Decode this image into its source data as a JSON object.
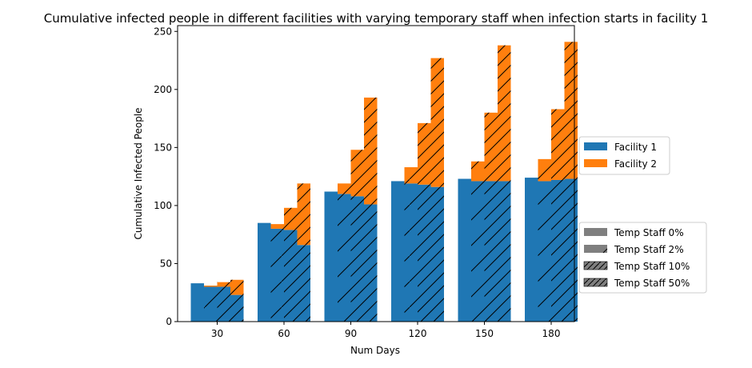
{
  "chart_data": {
    "type": "bar",
    "title": "Cumulative infected people in different facilities with varying temporary staff when infection starts in facility 1",
    "xlabel": "Num Days",
    "ylabel": "Cumulative Infected People",
    "categories": [
      "30",
      "60",
      "90",
      "120",
      "150",
      "180"
    ],
    "ylim": [
      0,
      255
    ],
    "yticks": [
      0,
      50,
      100,
      150,
      200,
      250
    ],
    "stacking": "stacked by facility within each temp staff group",
    "groups": [
      "Temp Staff 0%",
      "Temp Staff 2%",
      "Temp Staff 10%",
      "Temp Staff 50%"
    ],
    "group_hatch": [
      "none",
      "sparse",
      "dense",
      "dense"
    ],
    "series": [
      {
        "name": "Facility 1",
        "color": "#1f77b4",
        "values": [
          [
            33,
            30,
            30,
            23
          ],
          [
            85,
            80,
            79,
            66
          ],
          [
            112,
            110,
            108,
            101
          ],
          [
            121,
            119,
            118,
            116
          ],
          [
            123,
            121,
            121,
            121
          ],
          [
            124,
            121,
            122,
            123
          ]
        ]
      },
      {
        "name": "Facility 2",
        "color": "#ff7f0e",
        "values": [
          [
            0,
            1,
            4,
            13
          ],
          [
            0,
            4,
            19,
            53
          ],
          [
            0,
            9,
            40,
            92
          ],
          [
            0,
            14,
            53,
            111
          ],
          [
            0,
            17,
            59,
            117
          ],
          [
            0,
            19,
            61,
            118
          ]
        ]
      }
    ],
    "legends": [
      {
        "position": "right-middle",
        "entries": [
          "Facility 1",
          "Facility 2"
        ]
      },
      {
        "position": "right-lower",
        "entries": [
          "Temp Staff 0%",
          "Temp Staff 2%",
          "Temp Staff 10%",
          "Temp Staff 50%"
        ]
      }
    ],
    "legend_swatch_color": "#7f7f7f",
    "grid": false
  }
}
